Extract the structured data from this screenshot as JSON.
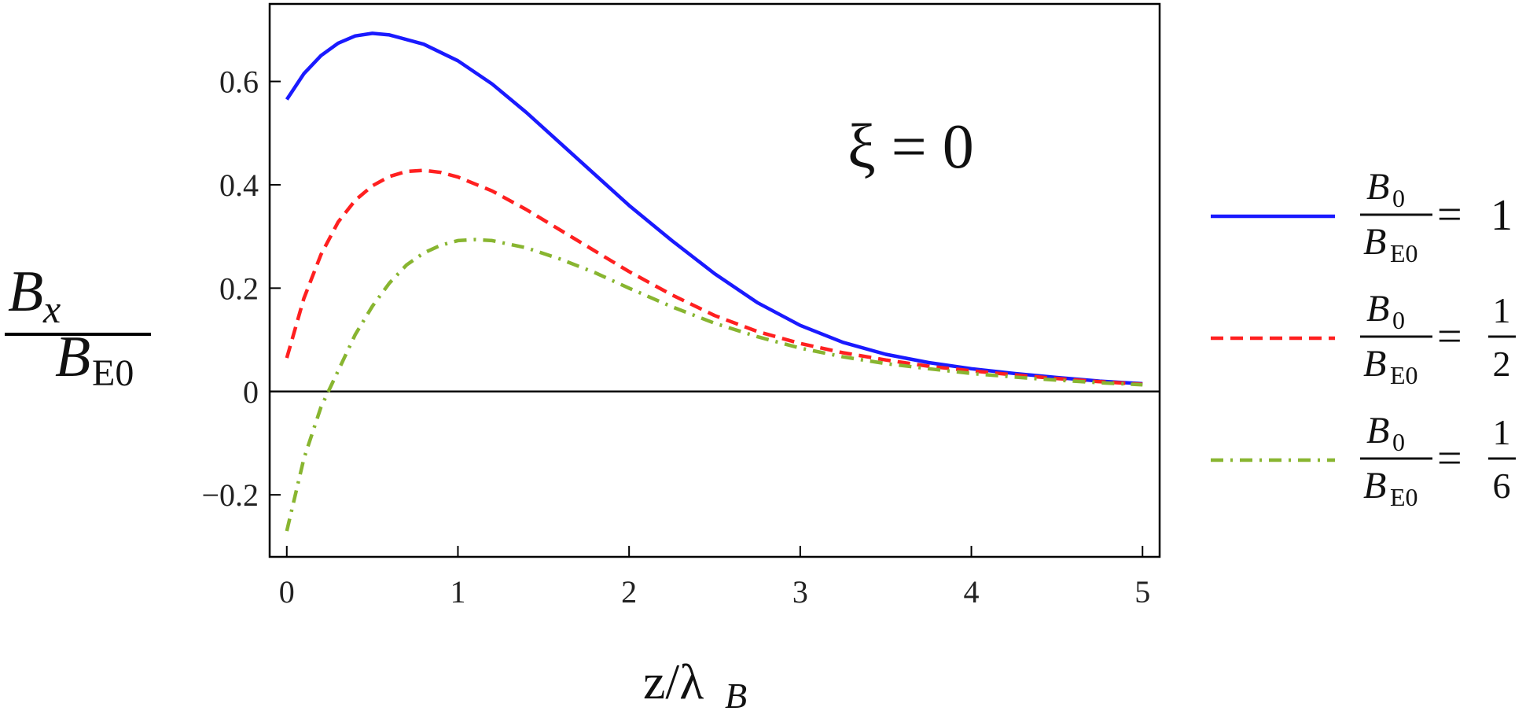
{
  "chart_data": {
    "type": "line",
    "xlabel": "z/λ_B",
    "ylabel": "B_x / B_E0",
    "xlim": [
      -0.1,
      5.1
    ],
    "ylim": [
      -0.32,
      0.75
    ],
    "xticks": [
      {
        "v": 0,
        "label": "0"
      },
      {
        "v": 1,
        "label": "1"
      },
      {
        "v": 2,
        "label": "2"
      },
      {
        "v": 3,
        "label": "3"
      },
      {
        "v": 4,
        "label": "4"
      },
      {
        "v": 5,
        "label": "5"
      }
    ],
    "yticks": [
      {
        "v": -0.2,
        "label": "−0.2"
      },
      {
        "v": 0,
        "label": "0"
      },
      {
        "v": 0.2,
        "label": "0.2"
      },
      {
        "v": 0.4,
        "label": "0.4"
      },
      {
        "v": 0.6,
        "label": "0.6"
      }
    ],
    "annotation": "ξ = 0",
    "grid": false,
    "legend_position": "right",
    "series": [
      {
        "legend_num": "1",
        "legend_den": "",
        "color": "#1a1aff",
        "dash": "solid",
        "x": [
          0,
          0.1,
          0.2,
          0.3,
          0.4,
          0.5,
          0.6,
          0.8,
          1.0,
          1.2,
          1.4,
          1.6,
          1.8,
          2.0,
          2.25,
          2.5,
          2.75,
          3.0,
          3.25,
          3.5,
          3.75,
          4.0,
          4.25,
          4.5,
          4.75,
          5.0
        ],
        "y": [
          0.565,
          0.615,
          0.65,
          0.674,
          0.688,
          0.693,
          0.69,
          0.672,
          0.64,
          0.595,
          0.54,
          0.48,
          0.42,
          0.36,
          0.292,
          0.228,
          0.172,
          0.128,
          0.095,
          0.072,
          0.056,
          0.044,
          0.035,
          0.027,
          0.02,
          0.015
        ]
      },
      {
        "legend_num": "1",
        "legend_den": "2",
        "color": "#ff2020",
        "dash": "dashed",
        "x": [
          0,
          0.1,
          0.2,
          0.3,
          0.4,
          0.5,
          0.6,
          0.7,
          0.8,
          0.9,
          1.0,
          1.2,
          1.4,
          1.6,
          1.8,
          2.0,
          2.25,
          2.5,
          2.75,
          3.0,
          3.25,
          3.5,
          3.75,
          4.0,
          4.25,
          4.5,
          4.75,
          5.0
        ],
        "y": [
          0.065,
          0.18,
          0.265,
          0.328,
          0.37,
          0.398,
          0.416,
          0.426,
          0.428,
          0.424,
          0.415,
          0.388,
          0.352,
          0.312,
          0.272,
          0.232,
          0.187,
          0.147,
          0.116,
          0.093,
          0.075,
          0.061,
          0.049,
          0.04,
          0.032,
          0.025,
          0.019,
          0.014
        ]
      },
      {
        "legend_num": "1",
        "legend_den": "6",
        "color": "#88b530",
        "dash": "dashdot",
        "x": [
          0,
          0.1,
          0.2,
          0.25,
          0.3,
          0.4,
          0.5,
          0.6,
          0.7,
          0.8,
          0.9,
          1.0,
          1.1,
          1.2,
          1.4,
          1.6,
          1.8,
          2.0,
          2.25,
          2.5,
          2.75,
          3.0,
          3.25,
          3.5,
          3.75,
          4.0,
          4.25,
          4.5,
          4.75,
          5.0
        ],
        "y": [
          -0.27,
          -0.13,
          -0.03,
          0.005,
          0.04,
          0.11,
          0.165,
          0.21,
          0.245,
          0.268,
          0.283,
          0.292,
          0.294,
          0.292,
          0.278,
          0.256,
          0.23,
          0.2,
          0.164,
          0.132,
          0.106,
          0.084,
          0.067,
          0.054,
          0.044,
          0.035,
          0.028,
          0.022,
          0.017,
          0.013
        ]
      }
    ]
  }
}
